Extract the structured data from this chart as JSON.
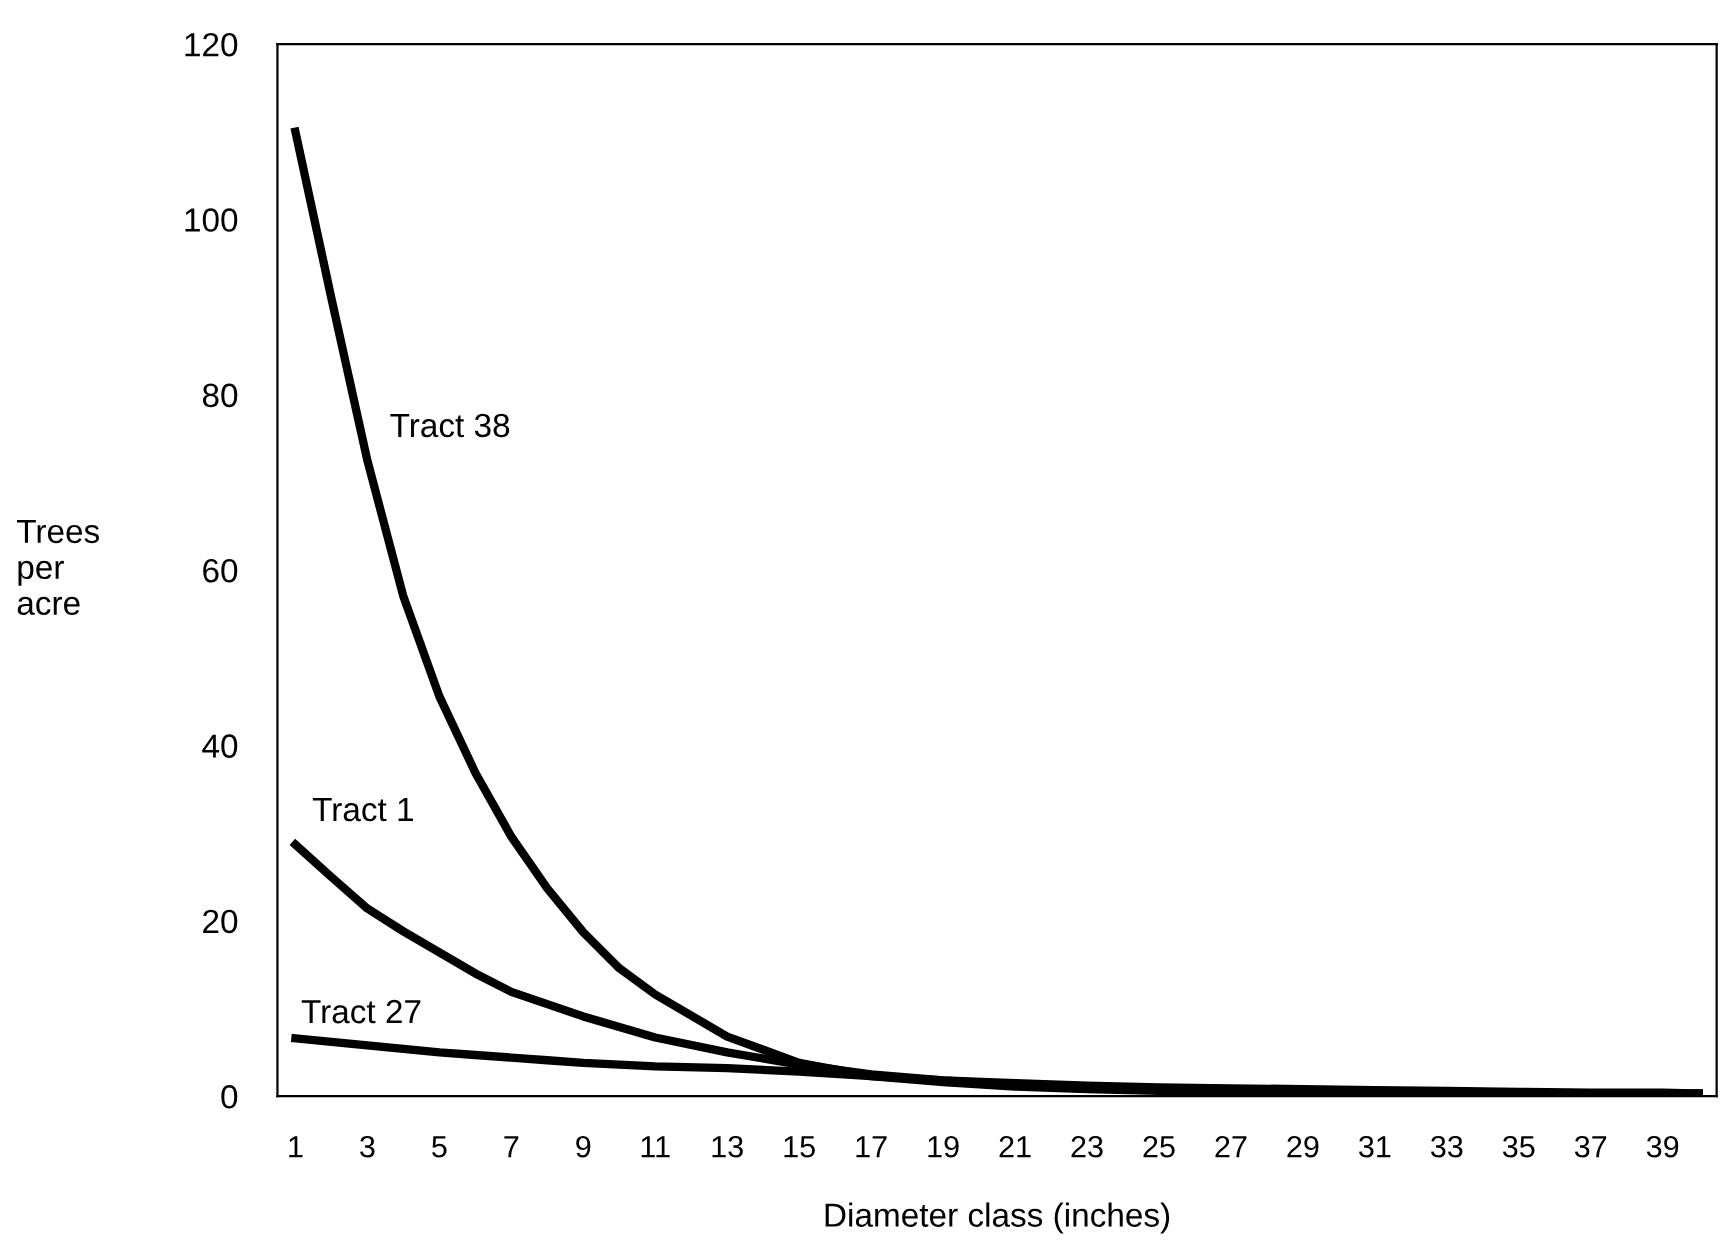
{
  "chart_data": {
    "type": "line",
    "xlabel": "Diameter class (inches)",
    "ylabel": "Trees\nper\nacre",
    "x": [
      1,
      2,
      3,
      4,
      5,
      6,
      7,
      8,
      9,
      10,
      11,
      13,
      15,
      17,
      19,
      21,
      23,
      25,
      27,
      29,
      31,
      33,
      35,
      37,
      39,
      40
    ],
    "series": [
      {
        "name": "Tract 38",
        "color": "#000000",
        "values": [
          110,
          91,
          72.5,
          57,
          45.6,
          36.9,
          29.6,
          23.7,
          18.7,
          14.6,
          11.6,
          6.8,
          3.8,
          2.3,
          1.6,
          1.1,
          0.8,
          0.6,
          0.5,
          0.4,
          0.4,
          0.3,
          0.3,
          0.3,
          0.3,
          0.3
        ]
      },
      {
        "name": "Tract 1",
        "color": "#000000",
        "values": [
          28.7,
          25,
          21.4,
          18.8,
          16.4,
          14,
          11.9,
          10.5,
          9.1,
          7.9,
          6.7,
          5,
          3.6,
          2.5,
          1.8,
          1.3,
          1,
          0.8,
          0.7,
          0.6,
          0.5,
          0.4,
          0.4,
          0.3,
          0.3,
          0.3
        ]
      },
      {
        "name": "Tract 27",
        "color": "#000000",
        "values": [
          6.6,
          6.2,
          5.8,
          5.4,
          5,
          4.7,
          4.4,
          4.1,
          3.8,
          3.6,
          3.4,
          3.2,
          2.8,
          2.3,
          1.8,
          1.5,
          1.2,
          1,
          0.9,
          0.8,
          0.7,
          0.6,
          0.5,
          0.4,
          0.4,
          0.3
        ]
      }
    ],
    "xlim": [
      0.5,
      40.5
    ],
    "ylim": [
      0,
      120
    ],
    "xticks": [
      1,
      3,
      5,
      7,
      9,
      11,
      13,
      15,
      17,
      19,
      21,
      23,
      25,
      27,
      29,
      31,
      33,
      35,
      37,
      39
    ],
    "yticks": [
      0,
      20,
      40,
      60,
      80,
      100,
      120
    ],
    "grid": false,
    "legend": false,
    "marker": "none",
    "line_style": "solid"
  }
}
